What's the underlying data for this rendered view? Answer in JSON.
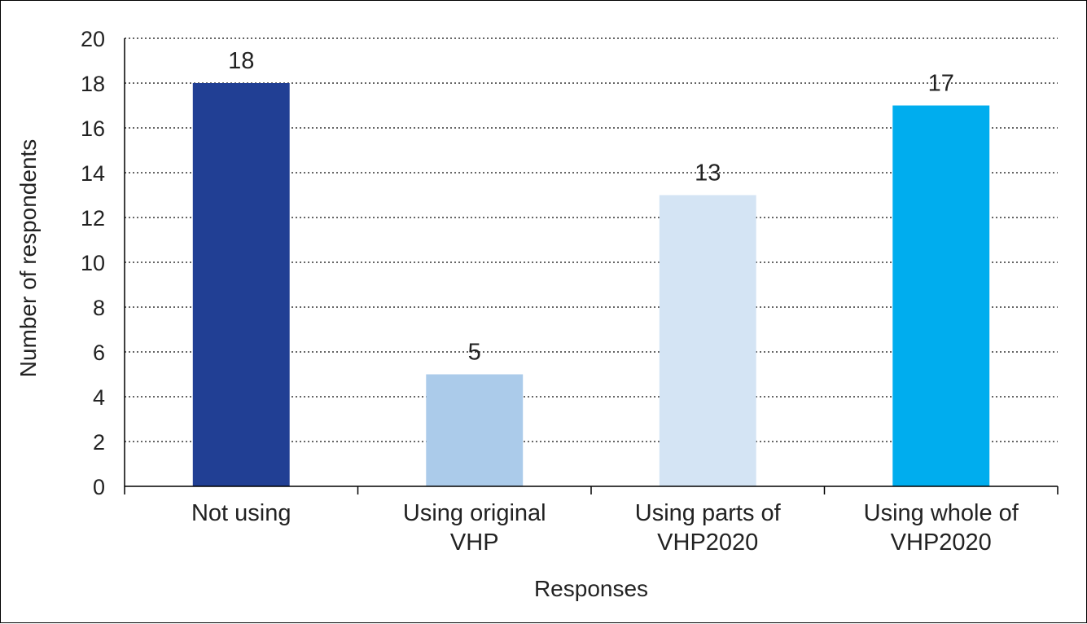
{
  "chart_data": {
    "type": "bar",
    "title": "",
    "xlabel": "Responses",
    "ylabel": "Number of respondents",
    "categories": [
      [
        "Not using"
      ],
      [
        "Using original",
        "VHP"
      ],
      [
        "Using parts of",
        "VHP2020"
      ],
      [
        "Using whole of",
        "VHP2020"
      ]
    ],
    "values": [
      18,
      5,
      13,
      17
    ],
    "colors": [
      "#213f94",
      "#abcbea",
      "#d4e4f4",
      "#00adee"
    ],
    "ylim": [
      0,
      20
    ],
    "yticks": [
      0,
      2,
      4,
      6,
      8,
      10,
      12,
      14,
      16,
      18,
      20
    ],
    "grid": "horizontal-dotted",
    "data_labels": true,
    "legend": "none"
  }
}
